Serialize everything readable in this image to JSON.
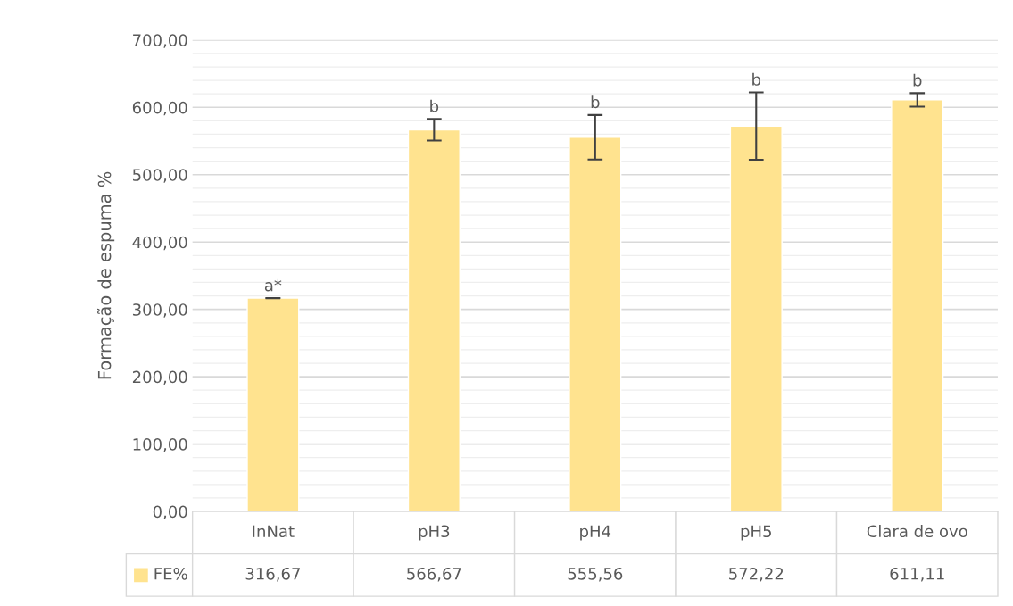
{
  "chart_data": {
    "type": "bar",
    "ylabel": "Formação de espuma %",
    "categories": [
      "InNat",
      "pH3",
      "pH4",
      "pH5",
      "Clara de ovo"
    ],
    "series": [
      {
        "name": "FE%",
        "color": "#ffe38f",
        "values": [
          316.67,
          566.67,
          555.56,
          572.22,
          611.11
        ],
        "value_labels": [
          "316,67",
          "566,67",
          "555,56",
          "572,22",
          "611,11"
        ],
        "errors": [
          0,
          16,
          33,
          50,
          10
        ]
      }
    ],
    "ylim": [
      0,
      700
    ],
    "yticks": [
      {
        "value": 0,
        "label": "0,00"
      },
      {
        "value": 20,
        "label": null
      },
      {
        "value": 40,
        "label": null
      },
      {
        "value": 60,
        "label": null
      },
      {
        "value": 80,
        "label": null
      },
      {
        "value": 100,
        "label": "100,00"
      },
      {
        "value": 120,
        "label": null
      },
      {
        "value": 140,
        "label": null
      },
      {
        "value": 160,
        "label": null
      },
      {
        "value": 180,
        "label": null
      },
      {
        "value": 200,
        "label": "200,00"
      },
      {
        "value": 220,
        "label": null
      },
      {
        "value": 240,
        "label": null
      },
      {
        "value": 260,
        "label": null
      },
      {
        "value": 280,
        "label": null
      },
      {
        "value": 300,
        "label": "300,00"
      },
      {
        "value": 320,
        "label": null
      },
      {
        "value": 340,
        "label": null
      },
      {
        "value": 360,
        "label": null
      },
      {
        "value": 380,
        "label": null
      },
      {
        "value": 400,
        "label": "400,00"
      },
      {
        "value": 420,
        "label": null
      },
      {
        "value": 440,
        "label": null
      },
      {
        "value": 460,
        "label": null
      },
      {
        "value": 480,
        "label": null
      },
      {
        "value": 500,
        "label": "500,00"
      },
      {
        "value": 520,
        "label": null
      },
      {
        "value": 540,
        "label": null
      },
      {
        "value": 560,
        "label": null
      },
      {
        "value": 580,
        "label": null
      },
      {
        "value": 600,
        "label": "600,00"
      },
      {
        "value": 620,
        "label": null
      },
      {
        "value": 640,
        "label": null
      },
      {
        "value": 660,
        "label": null
      },
      {
        "value": 680,
        "label": null
      },
      {
        "value": 700,
        "label": "700,00"
      }
    ],
    "grid": "y",
    "legend": "bottom",
    "annotations": [
      {
        "text": "a*",
        "x": "InNat",
        "y": 316.67
      },
      {
        "text": "b",
        "x": "pH3",
        "y": 582.67
      },
      {
        "text": "b",
        "x": "pH4",
        "y": 588.56
      },
      {
        "text": "b",
        "x": "pH5",
        "y": 622.22
      },
      {
        "text": "b",
        "x": "Clara de ovo",
        "y": 621.11
      }
    ]
  }
}
